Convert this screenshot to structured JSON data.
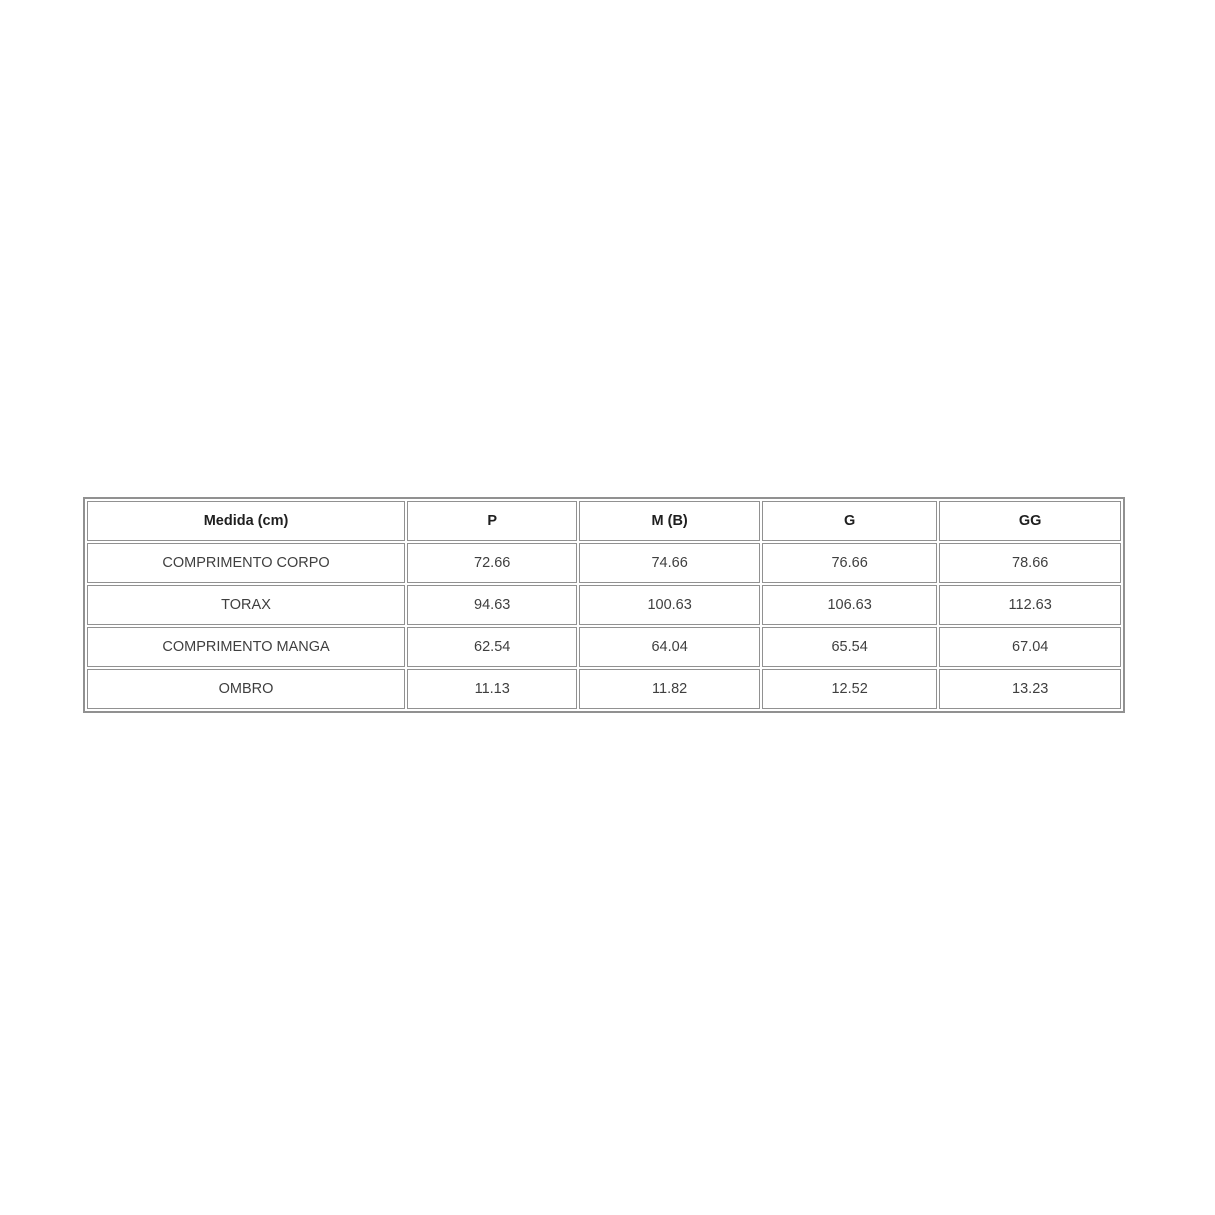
{
  "table": {
    "border_color": "#919191",
    "header_text_color": "#1f1f1f",
    "cell_text_color": "#3f3f3f",
    "header": [
      "Medida (cm)",
      "P",
      "M (B)",
      "G",
      "GG"
    ],
    "rows": [
      {
        "label": "COMPRIMENTO CORPO",
        "values": [
          "72.66",
          "74.66",
          "76.66",
          "78.66"
        ]
      },
      {
        "label": "TORAX",
        "values": [
          "94.63",
          "100.63",
          "106.63",
          "112.63"
        ]
      },
      {
        "label": "COMPRIMENTO MANGA",
        "values": [
          "62.54",
          "64.04",
          "65.54",
          "67.04"
        ]
      },
      {
        "label": "OMBRO",
        "values": [
          "11.13",
          "11.82",
          "12.52",
          "13.23"
        ]
      }
    ]
  }
}
